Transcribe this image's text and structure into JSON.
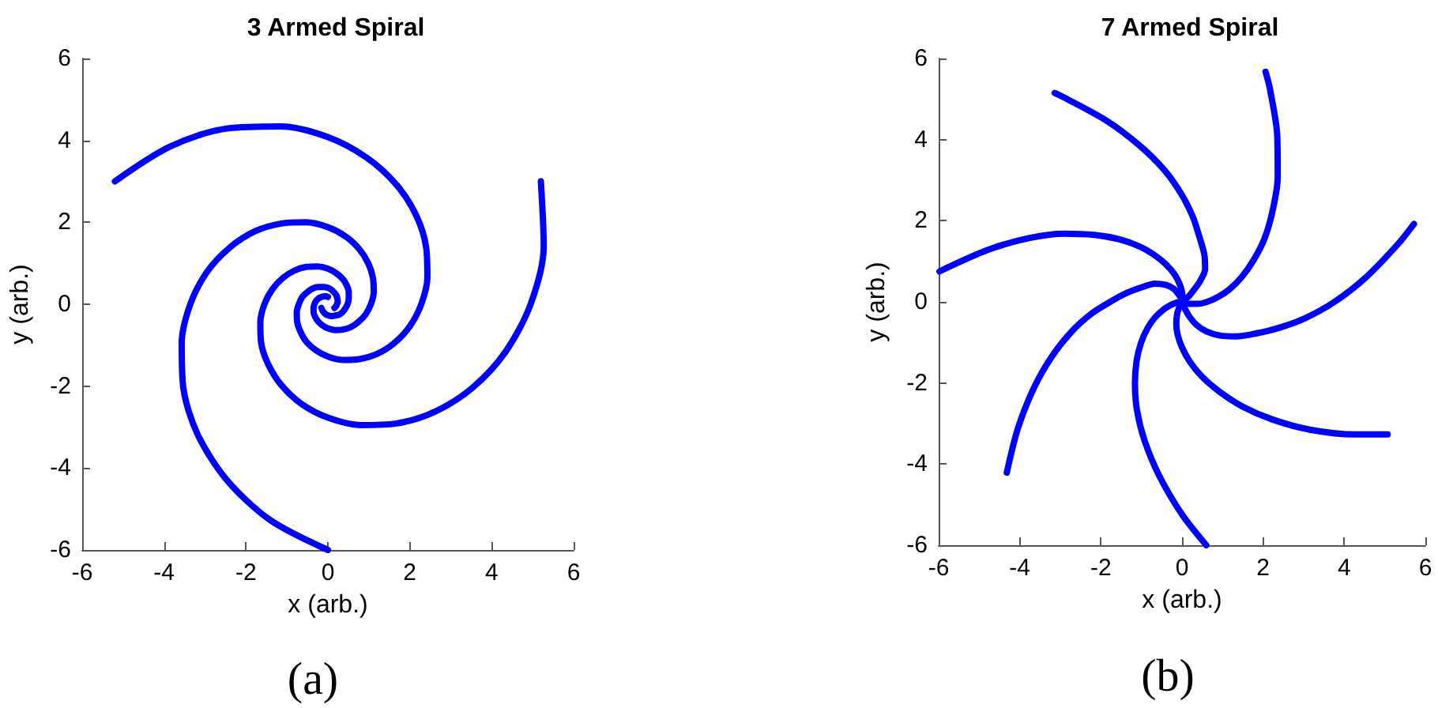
{
  "chart_data": [
    {
      "type": "line",
      "title": "3 Armed Spiral",
      "xlabel": "x (arb.)",
      "ylabel": "y (arb.)",
      "xlim": [
        -6,
        6
      ],
      "ylim": [
        -6,
        6
      ],
      "xticks": [
        -6,
        -4,
        -2,
        0,
        2,
        4,
        6
      ],
      "yticks": [
        -6,
        -4,
        -2,
        0,
        2,
        4,
        6
      ],
      "annotations": [
        "(a)"
      ],
      "series": [
        {
          "color": "#0000ff",
          "x": [
            -5.2,
            -3.85,
            -2.47,
            -1.16,
            0,
            0.96,
            1.68,
            2.16,
            2.4,
            2.43,
            2.28,
            2.0,
            1.63,
            1.21,
            0.77,
            0.36,
            0,
            -0.3,
            -0.53,
            -0.67,
            -0.75,
            -0.76,
            -0.71,
            -0.63,
            -0.51,
            -0.38,
            -0.24,
            -0.11,
            0,
            0.09,
            0.16,
            0.21,
            0.23,
            0.24,
            0.22,
            0.2,
            0.16
          ],
          "values": [
            3.0,
            3.85,
            4.29,
            4.34,
            4.08,
            3.57,
            2.91,
            2.16,
            1.38,
            0.65,
            0,
            -0.54,
            -0.94,
            -1.21,
            -1.34,
            -1.36,
            -1.28,
            -1.12,
            -0.91,
            -0.67,
            -0.43,
            -0.2,
            0,
            0.17,
            0.29,
            0.38,
            0.42,
            0.42,
            0.4,
            0.35,
            0.28,
            0.21,
            0.14,
            0.06,
            0,
            -0.05,
            -0.09
          ]
        },
        {
          "color": "#0000ff",
          "x": [
            0,
            -1.41,
            -2.47,
            -3.18,
            -3.53,
            -3.57,
            -3.36,
            -2.95,
            -2.4,
            -1.78,
            -1.14,
            -0.54,
            0,
            0.44,
            0.77,
            0.99,
            1.1,
            1.12,
            1.05,
            0.92,
            0.75,
            0.56,
            0.36,
            0.17,
            0,
            -0.14,
            -0.24,
            -0.31,
            -0.35,
            -0.35,
            -0.33,
            -0.29,
            -0.23,
            -0.17,
            -0.11,
            -0.05,
            0
          ],
          "values": [
            -6.0,
            -5.27,
            -4.29,
            -3.18,
            -2.04,
            -0.96,
            0,
            0.79,
            1.38,
            1.78,
            1.97,
            2.0,
            1.88,
            1.65,
            1.34,
            0.99,
            0.64,
            0.3,
            0,
            -0.25,
            -0.43,
            -0.56,
            -0.62,
            -0.63,
            -0.59,
            -0.51,
            -0.42,
            -0.31,
            -0.2,
            -0.09,
            0,
            0.08,
            0.14,
            0.17,
            0.19,
            0.2,
            0.18
          ]
        },
        {
          "color": "#0000ff",
          "x": [
            5.2,
            5.27,
            4.95,
            4.34,
            3.53,
            2.62,
            1.68,
            0.79,
            0,
            -0.65,
            -1.14,
            -1.46,
            -1.63,
            -1.65,
            -1.55,
            -1.36,
            -1.1,
            -0.82,
            -0.53,
            -0.25,
            0,
            0.2,
            0.36,
            0.46,
            0.51,
            0.51,
            0.48,
            0.42,
            0.35,
            0.26,
            0.16,
            0.08,
            0,
            -0.06,
            -0.11,
            -0.14,
            -0.16
          ],
          "values": [
            3.0,
            1.41,
            0,
            -1.16,
            -2.04,
            -2.62,
            -2.91,
            -2.95,
            -2.77,
            -2.43,
            -1.97,
            -1.46,
            -0.94,
            -0.44,
            0,
            0.36,
            0.64,
            0.82,
            0.91,
            0.92,
            0.87,
            0.76,
            0.62,
            0.46,
            0.29,
            0.14,
            0,
            -0.11,
            -0.2,
            -0.26,
            -0.28,
            -0.29,
            -0.27,
            -0.24,
            -0.19,
            -0.14,
            -0.09
          ]
        }
      ]
    },
    {
      "type": "line",
      "title": "7 Armed Spiral",
      "xlabel": "x (arb.)",
      "ylabel": "y (arb.)",
      "xlim": [
        -6,
        6
      ],
      "ylim": [
        -6,
        6
      ],
      "xticks": [
        -6,
        -4,
        -2,
        0,
        2,
        4,
        6
      ],
      "yticks": [
        -6,
        -4,
        -2,
        0,
        2,
        4,
        6
      ],
      "annotations": [
        "(b)"
      ],
      "series": [
        {
          "color": "#0000ff",
          "x": [
            2.06,
            2.17,
            2.35,
            2.36,
            2.23,
            2.03,
            1.76,
            1.47,
            1.17,
            0.89,
            0.62,
            0.38,
            0.17,
            0.01
          ],
          "values": [
            5.67,
            5.24,
            4.07,
            3.07,
            2.23,
            1.55,
            1.02,
            0.61,
            0.31,
            0.12,
            0,
            -0.05,
            -0.05,
            0
          ]
        },
        {
          "color": "#0000ff",
          "x": [
            5.72,
            5.33,
            4.53,
            3.76,
            3.04,
            2.39,
            1.82,
            1.33,
            0.93,
            0.6,
            0.35,
            0.18,
            0.06
          ],
          "values": [
            1.92,
            1.43,
            0.6,
            0,
            -0.4,
            -0.64,
            -0.78,
            -0.85,
            -0.83,
            -0.73,
            -0.56,
            -0.36,
            -0.15
          ]
        },
        {
          "color": "#0000ff",
          "x": [
            5.07,
            4.27,
            3.15,
            2.23,
            1.49,
            0.92,
            0.49,
            0.19,
            0,
            -0.11,
            -0.14,
            -0.12,
            -0.06
          ],
          "values": [
            -3.27,
            -3.27,
            -3.15,
            -2.9,
            -2.58,
            -2.21,
            -1.84,
            -1.47,
            -1.12,
            -0.8,
            -0.53,
            -0.3,
            -0.11
          ]
        },
        {
          "color": "#0000ff",
          "x": [
            0.6,
            0,
            -0.56,
            -0.92,
            -1.11,
            -1.16,
            -1.12,
            -1.01,
            -0.85,
            -0.67,
            -0.47,
            -0.28,
            -0.1
          ],
          "values": [
            -6.0,
            -5.24,
            -4.29,
            -3.43,
            -2.67,
            -2.01,
            -1.46,
            -1.01,
            -0.65,
            -0.39,
            -0.2,
            -0.08,
            -0.01
          ]
        },
        {
          "color": "#0000ff",
          "x": [
            -4.32,
            -4.04,
            -3.64,
            -3.19,
            -2.71,
            -2.23,
            -1.77,
            -1.36,
            -0.99,
            -0.67,
            -0.41,
            -0.2,
            -0.04
          ],
          "values": [
            -4.21,
            -3.1,
            -2.1,
            -1.32,
            -0.72,
            -0.29,
            0,
            0.22,
            0.36,
            0.45,
            0.42,
            0.32,
            0.12
          ]
        },
        {
          "color": "#0000ff",
          "x": [
            -5.98,
            -4.79,
            -3.78,
            -2.9,
            -2.16,
            -1.54,
            -1.04,
            -0.66,
            -0.38,
            -0.18,
            -0.06,
            0,
            0.01
          ],
          "values": [
            0.75,
            1.28,
            1.57,
            1.68,
            1.65,
            1.54,
            1.36,
            1.14,
            0.91,
            0.67,
            0.44,
            0.24,
            0.05
          ]
        },
        {
          "color": "#0000ff",
          "x": [
            -3.14,
            -2.91,
            -1.85,
            -1.03,
            -0.42,
            0,
            0.27,
            0.43,
            0.55,
            0.57,
            0.45,
            0.29,
            0.16,
            0.03
          ],
          "values": [
            5.15,
            5.04,
            4.46,
            3.84,
            3.23,
            2.63,
            2.09,
            1.6,
            1.17,
            0.81,
            0.52,
            0.29,
            0.13,
            0.02
          ]
        }
      ]
    }
  ]
}
